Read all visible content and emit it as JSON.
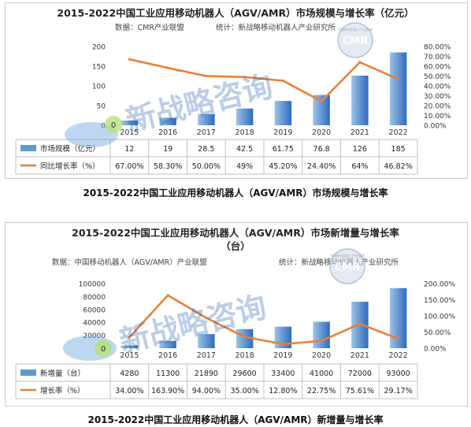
{
  "chart_data": [
    {
      "type": "bar",
      "title": "2015-2022中国工业应用移动机器人（AGV/AMR）市场规模与增长率（亿元）",
      "source_label": "数据：CMR产业联盟",
      "stats_label": "统计：新战略移动机器人产业研究所",
      "categories": [
        "2015",
        "2016",
        "2017",
        "2018",
        "2019",
        "2020",
        "2021",
        "2022"
      ],
      "series": [
        {
          "name": "市场规模（亿元）",
          "type": "bar",
          "axis": "left",
          "values": [
            12,
            19,
            28.5,
            42.5,
            61.75,
            76.8,
            126,
            185
          ],
          "labels": [
            "12",
            "19",
            "28.5",
            "42.5",
            "61.75",
            "76.8",
            "126",
            "185"
          ],
          "color": "#5b9bd5"
        },
        {
          "name": "同比增长率（%）",
          "type": "line",
          "axis": "right",
          "values": [
            67.0,
            58.3,
            50.0,
            49.0,
            45.2,
            24.4,
            64.0,
            46.82
          ],
          "labels": [
            "67.00%",
            "58.30%",
            "50.00%",
            "49%",
            "45.20%",
            "24.40%",
            "64%",
            "46.82%"
          ],
          "color": "#ed7d31"
        }
      ],
      "y_left": {
        "min": 0,
        "max": 200,
        "ticks": [
          "200",
          "150",
          "100",
          "50",
          "0"
        ]
      },
      "y_right": {
        "min": 0,
        "max": 80,
        "ticks": [
          "80.00%",
          "70.00%",
          "60.00%",
          "50.00%",
          "40.00%",
          "30.00%",
          "20.00%",
          "10.00%",
          "0.00%"
        ]
      },
      "grid": false,
      "legend": "data-table-left",
      "caption": "2015-2022中国工业应用移动机器人（AGV/AMR）市场规模与增长率"
    },
    {
      "type": "bar",
      "title": "2015-2022中国工业应用移动机器人（AGV/AMR）市场新增量与增长率",
      "title_line2": "（台）",
      "source_label": "数据：中国移动机器人（AGV/AMR）产业联盟",
      "stats_label": "统计：新战略移动机器人产业研究所",
      "categories": [
        "2015",
        "2016",
        "2017",
        "2018",
        "2019",
        "2020",
        "2021",
        "2022"
      ],
      "series": [
        {
          "name": "新增量（台）",
          "type": "bar",
          "axis": "left",
          "values": [
            4280,
            11300,
            21890,
            29600,
            33400,
            41000,
            72000,
            93000
          ],
          "labels": [
            "4280",
            "11300",
            "21890",
            "29600",
            "33400",
            "41000",
            "72000",
            "93000"
          ],
          "color": "#5b9bd5"
        },
        {
          "name": "增长率（%）",
          "type": "line",
          "axis": "right",
          "values": [
            34.0,
            163.9,
            94.0,
            35.0,
            12.8,
            22.75,
            75.61,
            29.17
          ],
          "labels": [
            "34.00%",
            "163.90%",
            "94.00%",
            "35.00%",
            "12.80%",
            "22.75%",
            "75.61%",
            "29.17%"
          ],
          "color": "#ed7d31"
        }
      ],
      "y_left": {
        "min": 0,
        "max": 100000,
        "ticks": [
          "100000",
          "80000",
          "60000",
          "40000",
          "20000",
          "0"
        ]
      },
      "y_right": {
        "min": 0,
        "max": 200,
        "ticks": [
          "200.00%",
          "150.00%",
          "100.00%",
          "50.00%",
          "0.00%"
        ]
      },
      "grid": false,
      "legend": "data-table-left",
      "caption": "2015-2022中国工业应用移动机器人（AGV/AMR）新增量与增长率"
    }
  ],
  "watermark": {
    "text": "新战略咨询",
    "badge": "CMR",
    "badge_ring": "中国移动机器人产业联盟",
    "zero_label": "0"
  },
  "colors": {
    "bar_start": "#9dc3e6",
    "bar_end": "#2e6bbf",
    "line": "#ed7d31",
    "table_border": "#bfbfbf"
  }
}
